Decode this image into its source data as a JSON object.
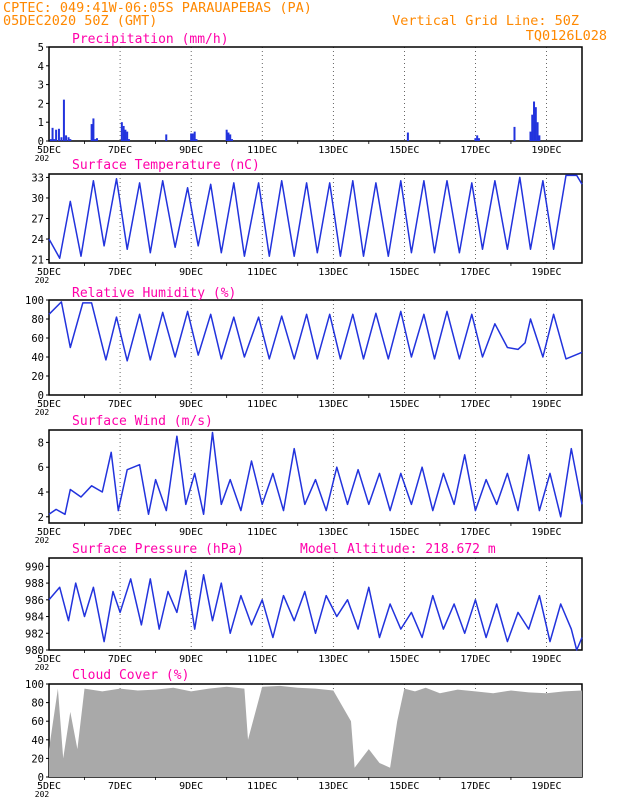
{
  "header": {
    "station": "CPTEC:   049:41W-06:05S  PARAUAPEBAS (PA)",
    "date": "05DEC2020 50Z (GMT)",
    "grid": "Vertical Grid Line: 50Z",
    "code": "TQ0126L028",
    "color": "#ff8800"
  },
  "colors": {
    "title": "#ff00aa",
    "series": "#2233dd",
    "grid": "#000000",
    "cloud": "#a9a9a9"
  },
  "x_ticks": [
    "5DEC",
    "7DEC",
    "9DEC",
    "11DEC",
    "13DEC",
    "15DEC",
    "17DEC",
    "19DEC"
  ],
  "x_tick_sub": "202",
  "chart_data": [
    {
      "type": "bar",
      "title": "Precipitation (mm/h)",
      "ylim": [
        0,
        5
      ],
      "yticks": [
        0,
        1,
        2,
        3,
        4,
        5
      ],
      "x": [
        0.05,
        0.1,
        0.15,
        0.2,
        0.28,
        0.35,
        0.42,
        0.48,
        0.55,
        0.6,
        1.2,
        1.25,
        1.3,
        1.35,
        2.05,
        2.1,
        2.15,
        2.2,
        2.25,
        3.3,
        4.0,
        4.05,
        4.1,
        4.15,
        5.0,
        5.05,
        5.1,
        5.15,
        10.1,
        12.0,
        12.05,
        12.1,
        13.1,
        13.55,
        13.6,
        13.65,
        13.7,
        13.75,
        13.8
      ],
      "values": [
        0.1,
        0.7,
        0.1,
        0.6,
        0.65,
        0.2,
        2.2,
        0.3,
        0.2,
        0.1,
        0.9,
        1.2,
        0.1,
        0.15,
        1.0,
        0.8,
        0.6,
        0.5,
        0.1,
        0.35,
        0.4,
        0.4,
        0.5,
        0.1,
        0.6,
        0.45,
        0.35,
        0.1,
        0.45,
        0.15,
        0.3,
        0.15,
        0.75,
        0.5,
        1.4,
        2.1,
        1.8,
        1.0,
        0.3
      ]
    },
    {
      "type": "line",
      "title": "Surface Temperature (nC)",
      "ylim": [
        20.5,
        33.5
      ],
      "yticks": [
        21,
        24,
        27,
        30,
        33
      ],
      "x": [
        0,
        0.3,
        0.6,
        0.9,
        1.25,
        1.55,
        1.9,
        2.2,
        2.55,
        2.85,
        3.2,
        3.55,
        3.9,
        4.2,
        4.55,
        4.85,
        5.2,
        5.5,
        5.9,
        6.2,
        6.55,
        6.9,
        7.25,
        7.55,
        7.9,
        8.2,
        8.55,
        8.85,
        9.2,
        9.55,
        9.9,
        10.2,
        10.55,
        10.85,
        11.2,
        11.55,
        11.9,
        12.2,
        12.55,
        12.9,
        13.25,
        13.55,
        13.9,
        14.2,
        14.55,
        14.85,
        15.0
      ],
      "values": [
        24,
        21.2,
        29.5,
        21.5,
        32.5,
        23,
        32.8,
        22.5,
        32.2,
        22,
        32.5,
        22.8,
        31.5,
        23,
        32,
        22,
        32.2,
        21.5,
        32.2,
        21.5,
        32.5,
        21.5,
        32.2,
        22,
        32.2,
        21.5,
        32.5,
        21.5,
        32.2,
        21.5,
        32.5,
        22,
        32.5,
        22,
        32.5,
        22,
        32.2,
        22.5,
        32.5,
        22.5,
        33.0,
        22.5,
        32.5,
        22.5,
        33.3,
        33.3,
        32.0
      ]
    },
    {
      "type": "line",
      "title": "Relative Humidity (%)",
      "ylim": [
        0,
        100
      ],
      "yticks": [
        0,
        20,
        40,
        60,
        80,
        100
      ],
      "x": [
        0,
        0.35,
        0.6,
        0.95,
        1.2,
        1.6,
        1.9,
        2.2,
        2.55,
        2.85,
        3.2,
        3.55,
        3.9,
        4.2,
        4.55,
        4.85,
        5.2,
        5.5,
        5.9,
        6.2,
        6.55,
        6.9,
        7.25,
        7.55,
        7.9,
        8.2,
        8.55,
        8.85,
        9.2,
        9.55,
        9.9,
        10.2,
        10.55,
        10.85,
        11.2,
        11.55,
        11.9,
        12.2,
        12.55,
        12.9,
        13.2,
        13.4,
        13.55,
        13.9,
        14.2,
        14.55,
        15.0
      ],
      "values": [
        85,
        98,
        50,
        97,
        97,
        37,
        82,
        36,
        85,
        37,
        87,
        40,
        88,
        42,
        85,
        38,
        82,
        40,
        82,
        38,
        83,
        38,
        85,
        38,
        85,
        38,
        85,
        38,
        86,
        38,
        88,
        40,
        85,
        38,
        88,
        38,
        85,
        40,
        75,
        50,
        48,
        55,
        80,
        40,
        85,
        38,
        45
      ]
    },
    {
      "type": "line",
      "title": "Surface Wind (m/s)",
      "ylim": [
        1.5,
        9
      ],
      "yticks": [
        2,
        4,
        6,
        8
      ],
      "x": [
        0,
        0.2,
        0.45,
        0.6,
        0.9,
        1.2,
        1.5,
        1.75,
        1.95,
        2.2,
        2.55,
        2.8,
        3.0,
        3.3,
        3.6,
        3.85,
        4.1,
        4.35,
        4.6,
        4.85,
        5.1,
        5.4,
        5.7,
        6.0,
        6.3,
        6.6,
        6.9,
        7.2,
        7.5,
        7.8,
        8.1,
        8.4,
        8.7,
        9.0,
        9.3,
        9.6,
        9.9,
        10.2,
        10.5,
        10.8,
        11.1,
        11.4,
        11.7,
        12.0,
        12.3,
        12.6,
        12.9,
        13.2,
        13.5,
        13.8,
        14.1,
        14.4,
        14.7,
        15.0
      ],
      "values": [
        2.2,
        2.6,
        2.2,
        4.2,
        3.6,
        4.5,
        4.0,
        7.2,
        2.5,
        5.8,
        6.2,
        2.2,
        5.0,
        2.5,
        8.5,
        3.0,
        5.5,
        2.2,
        8.8,
        3.0,
        5.0,
        2.5,
        6.5,
        3.0,
        5.5,
        2.5,
        7.5,
        3.0,
        5.0,
        2.5,
        6.0,
        3.0,
        5.8,
        3.0,
        5.5,
        2.5,
        5.5,
        3.0,
        6.0,
        2.5,
        5.5,
        3.0,
        7.0,
        2.5,
        5.0,
        3.0,
        5.5,
        2.5,
        7.0,
        2.5,
        5.5,
        2.0,
        7.5,
        3.0
      ]
    },
    {
      "type": "line",
      "title": "Surface Pressure (hPa)",
      "subtitle": "Model Altitude: 218.672  m",
      "ylim": [
        980,
        991
      ],
      "yticks": [
        980,
        982,
        984,
        986,
        988,
        990
      ],
      "x": [
        0,
        0.3,
        0.55,
        0.75,
        1.0,
        1.25,
        1.55,
        1.8,
        2.0,
        2.3,
        2.6,
        2.85,
        3.1,
        3.35,
        3.6,
        3.85,
        4.1,
        4.35,
        4.6,
        4.85,
        5.1,
        5.4,
        5.7,
        6.0,
        6.3,
        6.6,
        6.9,
        7.2,
        7.5,
        7.8,
        8.1,
        8.4,
        8.7,
        9.0,
        9.3,
        9.6,
        9.9,
        10.2,
        10.5,
        10.8,
        11.1,
        11.4,
        11.7,
        12.0,
        12.3,
        12.6,
        12.9,
        13.2,
        13.5,
        13.8,
        14.1,
        14.4,
        14.7,
        14.85,
        15.0
      ],
      "values": [
        986,
        987.5,
        983.5,
        988,
        984,
        987.5,
        981,
        987,
        984.5,
        988.5,
        983,
        988.5,
        982.5,
        987,
        984.5,
        989.5,
        982.5,
        989,
        983.5,
        988,
        982,
        986.5,
        983,
        986,
        981.5,
        986.5,
        983.5,
        987,
        982,
        986.5,
        984,
        986,
        982.5,
        987.5,
        981.5,
        985.5,
        982.5,
        984.5,
        981.5,
        986.5,
        982.5,
        985.5,
        982,
        986,
        981.5,
        985.5,
        981,
        984.5,
        982.5,
        986.5,
        981,
        985.5,
        982.5,
        980,
        981.5
      ]
    },
    {
      "type": "area",
      "title": "Cloud Cover (%)",
      "ylim": [
        0,
        100
      ],
      "yticks": [
        0,
        20,
        40,
        60,
        80,
        100
      ],
      "x": [
        0,
        0.25,
        0.4,
        0.6,
        0.8,
        1.0,
        1.5,
        2.0,
        2.5,
        3.0,
        3.5,
        4.0,
        4.5,
        5.0,
        5.5,
        5.6,
        6.0,
        6.5,
        7.0,
        7.5,
        8.0,
        8.5,
        8.6,
        8.8,
        9.0,
        9.3,
        9.6,
        9.8,
        10.0,
        10.3,
        10.6,
        11.0,
        11.5,
        12.0,
        12.5,
        13.0,
        13.5,
        14.0,
        14.5,
        15.0
      ],
      "values": [
        30,
        95,
        20,
        70,
        30,
        95,
        92,
        95,
        93,
        94,
        96,
        92,
        95,
        97,
        95,
        40,
        97,
        98,
        96,
        95,
        93,
        60,
        10,
        20,
        30,
        15,
        10,
        60,
        95,
        92,
        96,
        90,
        94,
        92,
        90,
        93,
        91,
        90,
        92,
        93
      ]
    }
  ]
}
